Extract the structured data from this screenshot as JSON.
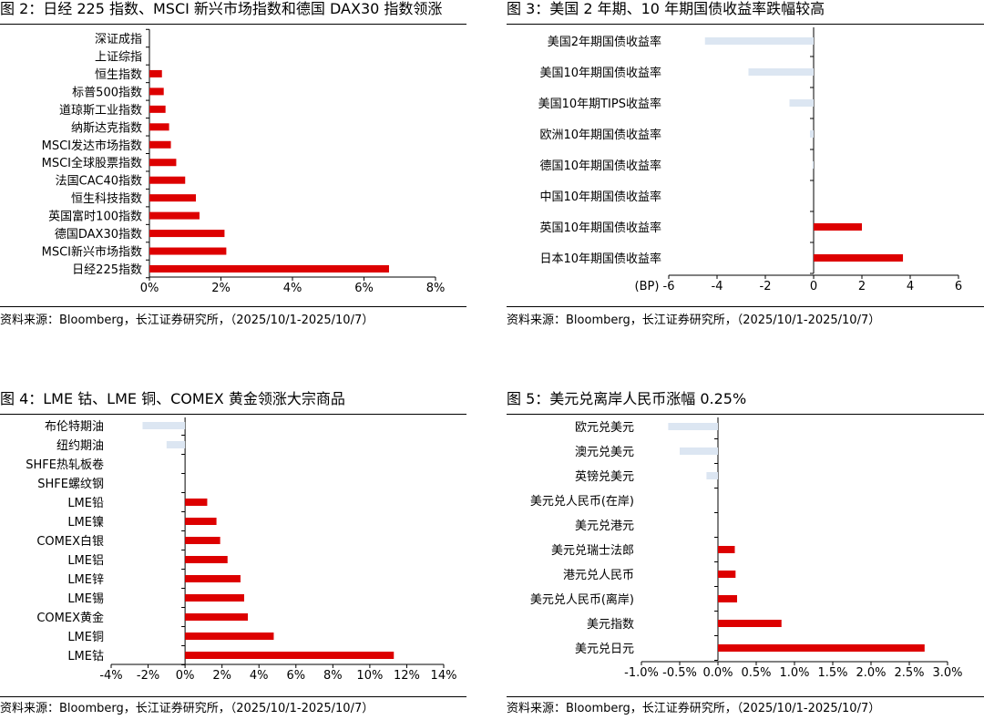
{
  "source_text": "资料来源：Bloomberg，长江证券研究所，（2025/10/1-2025/10/7）",
  "colors": {
    "positive": "#dd0000",
    "negative": "#dce6f2",
    "axis": "#000000"
  },
  "chart_data": [
    {
      "type": "bar",
      "orientation": "horizontal",
      "title": "图 2：日经 225 指数、MSCI 新兴市场指数和德国 DAX30 指数领涨",
      "categories": [
        "深证成指",
        "上证综指",
        "恒生指数",
        "标普500指数",
        "道琼斯工业指数",
        "纳斯达克指数",
        "MSCI发达市场指数",
        "MSCI全球股票指数",
        "法国CAC40指数",
        "恒生科技指数",
        "英国富时100指数",
        "德国DAX30指数",
        "MSCI新兴市场指数",
        "日经225指数"
      ],
      "values": [
        0,
        0,
        0.35,
        0.4,
        0.45,
        0.55,
        0.6,
        0.75,
        1.0,
        1.3,
        1.4,
        2.1,
        2.15,
        6.7
      ],
      "xlim": [
        0,
        8
      ],
      "xticks": [
        0,
        2,
        4,
        6,
        8
      ],
      "tick_labels": [
        "0%",
        "2%",
        "4%",
        "6%",
        "8%"
      ],
      "xlabel": "",
      "grid": false,
      "legend": "none"
    },
    {
      "type": "bar",
      "orientation": "horizontal",
      "title": "图 3：美国 2 年期、10 年期国债收益率跌幅较高",
      "categories": [
        "美国2年期国债收益率",
        "美国10年期国债收益率",
        "美国10年期TIPS收益率",
        "欧洲10年期国债收益率",
        "德国10年期国债收益率",
        "中国10年期国债收益率",
        "英国10年期国债收益率",
        "日本10年期国债收益率"
      ],
      "values": [
        -4.5,
        -2.7,
        -1.0,
        -0.15,
        -0.05,
        0,
        2.0,
        3.7
      ],
      "xlim": [
        -6,
        6
      ],
      "xticks": [
        -6,
        -4,
        -2,
        0,
        2,
        4,
        6
      ],
      "tick_labels": [
        "-6",
        "-4",
        "-2",
        "0",
        "2",
        "4",
        "6"
      ],
      "xlabel": "(BP)",
      "grid": false,
      "legend": "none"
    },
    {
      "type": "bar",
      "orientation": "horizontal",
      "title": "图 4：LME 钴、LME 铜、COMEX 黄金领涨大宗商品",
      "categories": [
        "布伦特期油",
        "纽约期油",
        "SHFE热轧板卷",
        "SHFE螺纹钢",
        "LME铅",
        "LME镍",
        "COMEX白银",
        "LME铝",
        "LME锌",
        "LME锡",
        "COMEX黄金",
        "LME铜",
        "LME钴"
      ],
      "values": [
        -2.3,
        -1.0,
        0,
        0,
        1.2,
        1.7,
        1.9,
        2.3,
        3.0,
        3.2,
        3.4,
        4.8,
        11.3
      ],
      "xlim": [
        -4,
        14
      ],
      "xticks": [
        -4,
        -2,
        0,
        2,
        4,
        6,
        8,
        10,
        12,
        14
      ],
      "tick_labels": [
        "-4%",
        "-2%",
        "0%",
        "2%",
        "4%",
        "6%",
        "8%",
        "10%",
        "12%",
        "14%"
      ],
      "xlabel": "",
      "grid": false,
      "legend": "none"
    },
    {
      "type": "bar",
      "orientation": "horizontal",
      "title": "图 5：美元兑离岸人民币涨幅 0.25%",
      "categories": [
        "欧元兑美元",
        "澳元兑美元",
        "英镑兑美元",
        "美元兑人民币(在岸)",
        "美元兑港元",
        "美元兑瑞士法郎",
        "港元兑人民币",
        "美元兑人民币(离岸)",
        "美元指数",
        "美元兑日元"
      ],
      "values": [
        -0.65,
        -0.5,
        -0.15,
        0,
        0,
        0.22,
        0.23,
        0.25,
        0.83,
        2.7
      ],
      "xlim": [
        -1.0,
        3.0
      ],
      "xticks": [
        -1.0,
        -0.5,
        0,
        0.5,
        1.0,
        1.5,
        2.0,
        2.5,
        3.0
      ],
      "tick_labels": [
        "-1.0%",
        "-0.5%",
        "0.0%",
        "0.5%",
        "1.0%",
        "1.5%",
        "2.0%",
        "2.5%",
        "3.0%"
      ],
      "xlabel": "",
      "grid": false,
      "legend": "none"
    }
  ]
}
